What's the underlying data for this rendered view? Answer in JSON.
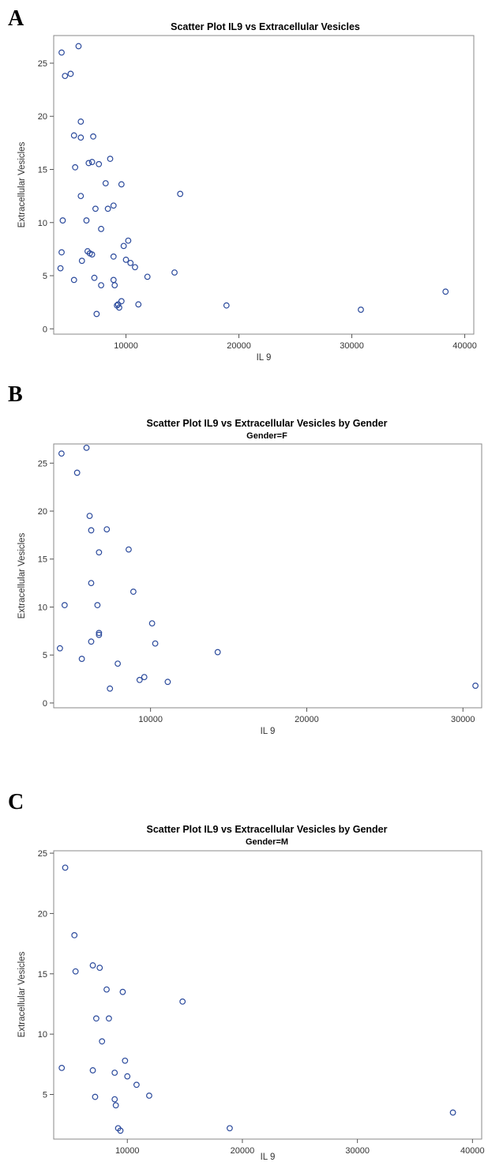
{
  "chart_data": [
    {
      "type": "scatter",
      "panel_label": "A",
      "title": "Scatter Plot IL9 vs Extracellular Vesicles",
      "subtitle": "",
      "xlabel": "IL 9",
      "ylabel": "Extracellular Vesicles",
      "xlim": [
        3600,
        40800
      ],
      "ylim": [
        -0.5,
        27.6
      ],
      "xticks": [
        10000,
        20000,
        30000,
        40000
      ],
      "yticks": [
        0,
        5,
        10,
        15,
        20,
        25
      ],
      "color": "#2b4a9c",
      "points": [
        [
          4300,
          26.0
        ],
        [
          4600,
          23.8
        ],
        [
          5100,
          24.0
        ],
        [
          5800,
          26.6
        ],
        [
          5400,
          18.2
        ],
        [
          6000,
          19.5
        ],
        [
          6000,
          18.0
        ],
        [
          7100,
          18.1
        ],
        [
          5500,
          15.2
        ],
        [
          6700,
          15.6
        ],
        [
          7000,
          15.7
        ],
        [
          7600,
          15.5
        ],
        [
          8600,
          16.0
        ],
        [
          8200,
          13.7
        ],
        [
          9600,
          13.6
        ],
        [
          6000,
          12.5
        ],
        [
          7300,
          11.3
        ],
        [
          8400,
          11.3
        ],
        [
          8900,
          11.6
        ],
        [
          14800,
          12.7
        ],
        [
          4400,
          10.2
        ],
        [
          6500,
          10.2
        ],
        [
          7800,
          9.4
        ],
        [
          4300,
          7.2
        ],
        [
          6600,
          7.3
        ],
        [
          6800,
          7.1
        ],
        [
          7000,
          7.0
        ],
        [
          8900,
          6.8
        ],
        [
          9800,
          7.8
        ],
        [
          10200,
          8.3
        ],
        [
          10000,
          6.5
        ],
        [
          10400,
          6.2
        ],
        [
          10800,
          5.8
        ],
        [
          6100,
          6.4
        ],
        [
          4200,
          5.7
        ],
        [
          14300,
          5.3
        ],
        [
          5400,
          4.6
        ],
        [
          7200,
          4.8
        ],
        [
          8900,
          4.6
        ],
        [
          11900,
          4.9
        ],
        [
          7800,
          4.1
        ],
        [
          9000,
          4.1
        ],
        [
          9200,
          2.2
        ],
        [
          9400,
          2.0
        ],
        [
          9600,
          2.6
        ],
        [
          9300,
          2.3
        ],
        [
          11100,
          2.3
        ],
        [
          7400,
          1.4
        ],
        [
          18900,
          2.2
        ],
        [
          30800,
          1.8
        ],
        [
          38300,
          3.5
        ]
      ]
    },
    {
      "type": "scatter",
      "panel_label": "B",
      "title": "Scatter Plot IL9 vs Extracellular Vesicles by Gender",
      "subtitle": "Gender=F",
      "xlabel": "IL 9",
      "ylabel": "Extracellular Vesicles",
      "xlim": [
        3800,
        31200
      ],
      "ylim": [
        -0.5,
        27.0
      ],
      "xticks": [
        10000,
        20000,
        30000
      ],
      "yticks": [
        0,
        5,
        10,
        15,
        20,
        25
      ],
      "color": "#2b4a9c",
      "points": [
        [
          4300,
          26.0
        ],
        [
          5300,
          24.0
        ],
        [
          5900,
          26.6
        ],
        [
          6100,
          19.5
        ],
        [
          6200,
          18.0
        ],
        [
          7200,
          18.1
        ],
        [
          6700,
          15.7
        ],
        [
          8600,
          16.0
        ],
        [
          6200,
          12.5
        ],
        [
          8900,
          11.6
        ],
        [
          4500,
          10.2
        ],
        [
          6600,
          10.2
        ],
        [
          6700,
          7.3
        ],
        [
          6700,
          7.1
        ],
        [
          10100,
          8.3
        ],
        [
          6200,
          6.4
        ],
        [
          10300,
          6.2
        ],
        [
          4200,
          5.7
        ],
        [
          14300,
          5.3
        ],
        [
          5600,
          4.6
        ],
        [
          7900,
          4.1
        ],
        [
          9300,
          2.4
        ],
        [
          9600,
          2.7
        ],
        [
          11100,
          2.2
        ],
        [
          7400,
          1.5
        ],
        [
          30800,
          1.8
        ]
      ]
    },
    {
      "type": "scatter",
      "panel_label": "C",
      "title": "Scatter Plot IL9 vs Extracellular Vesicles by Gender",
      "subtitle": "Gender=M",
      "xlabel": "IL 9",
      "ylabel": "Extracellular Vesicles",
      "xlim": [
        3600,
        40800
      ],
      "ylim": [
        1.3,
        25.2
      ],
      "xticks": [
        10000,
        20000,
        30000,
        40000
      ],
      "yticks": [
        5,
        10,
        15,
        20,
        25
      ],
      "color": "#2b4a9c",
      "points": [
        [
          4600,
          23.8
        ],
        [
          5400,
          18.2
        ],
        [
          5500,
          15.2
        ],
        [
          7000,
          15.7
        ],
        [
          7600,
          15.5
        ],
        [
          8200,
          13.7
        ],
        [
          9600,
          13.5
        ],
        [
          14800,
          12.7
        ],
        [
          7300,
          11.3
        ],
        [
          8400,
          11.3
        ],
        [
          7800,
          9.4
        ],
        [
          4300,
          7.2
        ],
        [
          7000,
          7.0
        ],
        [
          8900,
          6.8
        ],
        [
          9800,
          7.8
        ],
        [
          10000,
          6.5
        ],
        [
          10800,
          5.8
        ],
        [
          7200,
          4.8
        ],
        [
          8900,
          4.6
        ],
        [
          9000,
          4.1
        ],
        [
          11900,
          4.9
        ],
        [
          9200,
          2.2
        ],
        [
          9400,
          2.0
        ],
        [
          18900,
          2.2
        ],
        [
          38300,
          3.5
        ]
      ]
    }
  ]
}
